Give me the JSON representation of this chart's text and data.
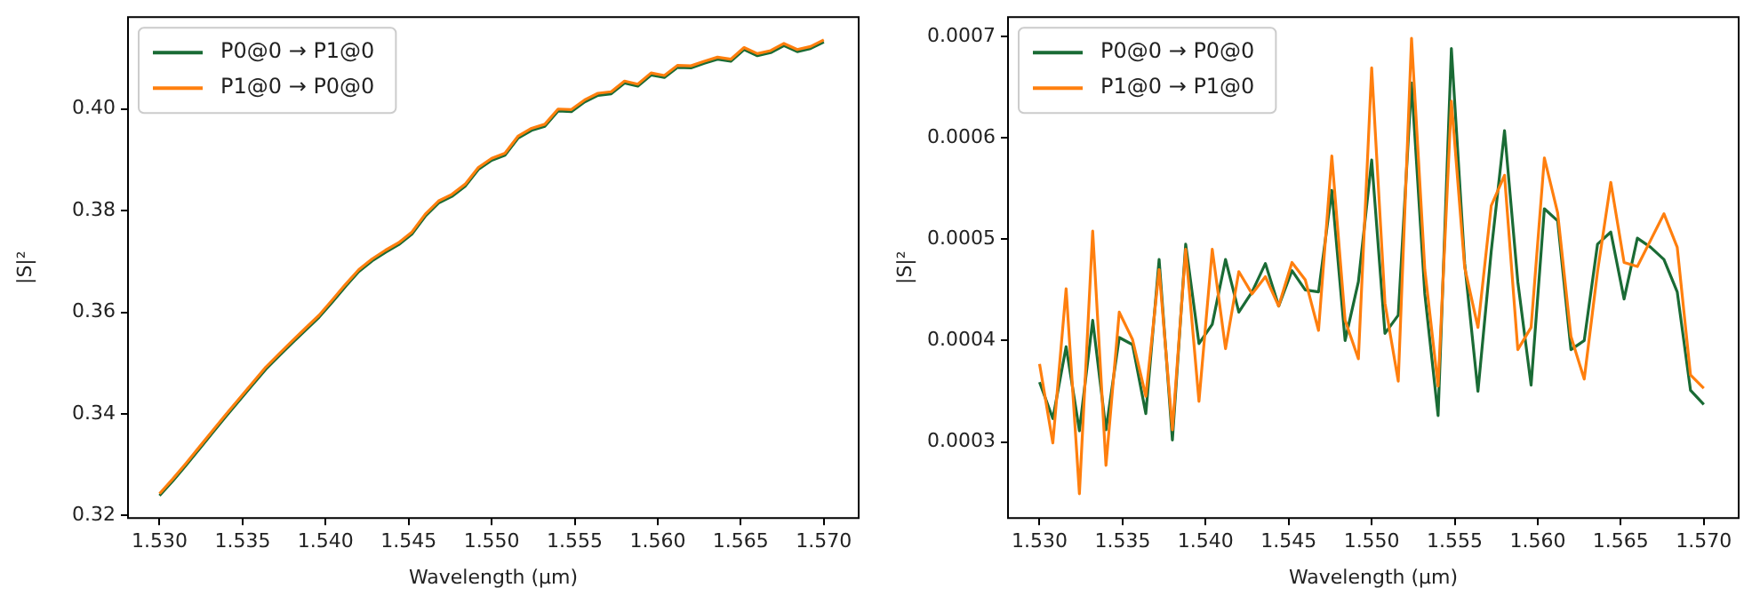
{
  "chart_data": [
    {
      "type": "line",
      "xlabel": "Wavelength (μm)",
      "ylabel": "|S|²",
      "legend": "top left",
      "grid": false,
      "x": [
        1.53,
        1.5308,
        1.5316,
        1.5324,
        1.5332,
        1.534,
        1.5348,
        1.5356,
        1.5364,
        1.5372,
        1.538,
        1.5388,
        1.5396,
        1.5404,
        1.5412,
        1.542,
        1.5428,
        1.5436,
        1.5444,
        1.5452,
        1.546,
        1.5468,
        1.5476,
        1.5484,
        1.5492,
        1.55,
        1.5508,
        1.5516,
        1.5524,
        1.5532,
        1.554,
        1.5548,
        1.5556,
        1.5564,
        1.5572,
        1.558,
        1.5588,
        1.5596,
        1.5604,
        1.5612,
        1.562,
        1.5628,
        1.5636,
        1.5644,
        1.5652,
        1.566,
        1.5668,
        1.5676,
        1.5684,
        1.5692,
        1.57
      ],
      "xlim": [
        1.5281,
        1.5721
      ],
      "ylim": [
        0.3195,
        0.4181
      ],
      "xticks": [
        {
          "value": 1.53,
          "label": "1.530"
        },
        1.535,
        {
          "value": 1.54,
          "label": "1.540"
        },
        1.545,
        {
          "value": 1.55,
          "label": "1.550"
        },
        1.555,
        {
          "value": 1.56,
          "label": "1.560"
        },
        1.565,
        {
          "value": 1.57,
          "label": "1.570"
        }
      ],
      "yticks": [
        0.32,
        0.34,
        0.36,
        0.38,
        {
          "value": 0.4,
          "label": "0.40"
        }
      ],
      "series": [
        {
          "name": "P0@0 → P1@0",
          "color": "#1a6b35",
          "values": [
            0.3239,
            0.3268,
            0.3299,
            0.3331,
            0.3363,
            0.3395,
            0.3426,
            0.3457,
            0.3488,
            0.3514,
            0.354,
            0.3565,
            0.359,
            0.362,
            0.3651,
            0.368,
            0.3701,
            0.3718,
            0.3733,
            0.3754,
            0.3789,
            0.3815,
            0.3828,
            0.3848,
            0.3881,
            0.3899,
            0.3909,
            0.3943,
            0.3958,
            0.3966,
            0.3996,
            0.3995,
            0.4014,
            0.4027,
            0.403,
            0.4051,
            0.4045,
            0.4067,
            0.4062,
            0.4082,
            0.4081,
            0.409,
            0.4098,
            0.4094,
            0.4117,
            0.4105,
            0.4111,
            0.4125,
            0.4113,
            0.4119,
            0.4132
          ]
        },
        {
          "name": "P1@0 → P0@0",
          "color": "#ff7f0e",
          "values": [
            0.3243,
            0.3272,
            0.3303,
            0.3335,
            0.3367,
            0.3399,
            0.343,
            0.3461,
            0.3492,
            0.3518,
            0.3544,
            0.3569,
            0.3594,
            0.3624,
            0.3655,
            0.3684,
            0.3705,
            0.3722,
            0.3737,
            0.3758,
            0.3793,
            0.3819,
            0.3832,
            0.3852,
            0.3885,
            0.3903,
            0.3913,
            0.3947,
            0.3962,
            0.397,
            0.4,
            0.3999,
            0.4018,
            0.4031,
            0.4034,
            0.4055,
            0.4049,
            0.4071,
            0.4066,
            0.4086,
            0.4085,
            0.4094,
            0.4102,
            0.4098,
            0.4121,
            0.4109,
            0.4115,
            0.4129,
            0.4117,
            0.4123,
            0.4136
          ]
        }
      ]
    },
    {
      "type": "line",
      "xlabel": "Wavelength (μm)",
      "ylabel": "|S|²",
      "legend": "top left",
      "grid": false,
      "x": [
        1.53,
        1.5308,
        1.5316,
        1.5324,
        1.5332,
        1.534,
        1.5348,
        1.5356,
        1.5364,
        1.5372,
        1.538,
        1.5388,
        1.5396,
        1.5404,
        1.5412,
        1.542,
        1.5428,
        1.5436,
        1.5444,
        1.5452,
        1.546,
        1.5468,
        1.5476,
        1.5484,
        1.5492,
        1.55,
        1.5508,
        1.5516,
        1.5524,
        1.5532,
        1.554,
        1.5548,
        1.5556,
        1.5564,
        1.5572,
        1.558,
        1.5588,
        1.5596,
        1.5604,
        1.5612,
        1.562,
        1.5628,
        1.5636,
        1.5644,
        1.5652,
        1.566,
        1.5668,
        1.5676,
        1.5684,
        1.5692,
        1.57
      ],
      "xlim": [
        1.5281,
        1.5721
      ],
      "ylim": [
        0.000225,
        0.000719
      ],
      "xticks": [
        {
          "value": 1.53,
          "label": "1.530"
        },
        1.535,
        {
          "value": 1.54,
          "label": "1.540"
        },
        1.545,
        {
          "value": 1.55,
          "label": "1.550"
        },
        1.555,
        {
          "value": 1.56,
          "label": "1.560"
        },
        1.565,
        {
          "value": 1.57,
          "label": "1.570"
        }
      ],
      "yticks": [
        0.0003,
        0.0004,
        0.0005,
        0.0006,
        0.0007
      ],
      "series": [
        {
          "name": "P0@0 → P0@0",
          "color": "#1a6b35",
          "values": [
            0.000359,
            0.000323,
            0.000394,
            0.000311,
            0.00042,
            0.000312,
            0.000403,
            0.000396,
            0.000328,
            0.00048,
            0.000302,
            0.000495,
            0.000397,
            0.000416,
            0.00048,
            0.000428,
            0.000448,
            0.000476,
            0.000434,
            0.000469,
            0.00045,
            0.000448,
            0.000548,
            0.0004,
            0.000458,
            0.000578,
            0.000407,
            0.000425,
            0.000654,
            0.000446,
            0.000326,
            0.000688,
            0.000476,
            0.00035,
            0.000488,
            0.000607,
            0.000458,
            0.000356,
            0.00053,
            0.000518,
            0.000391,
            0.0004,
            0.000495,
            0.000507,
            0.000441,
            0.000501,
            0.000492,
            0.00048,
            0.000448,
            0.000351,
            0.000337
          ]
        },
        {
          "name": "P1@0 → P1@0",
          "color": "#ff7f0e",
          "values": [
            0.000377,
            0.000299,
            0.000451,
            0.000249,
            0.000508,
            0.000277,
            0.000428,
            0.000401,
            0.000345,
            0.00047,
            0.000312,
            0.00049,
            0.00034,
            0.00049,
            0.000392,
            0.000468,
            0.000446,
            0.000463,
            0.000434,
            0.000477,
            0.00046,
            0.00041,
            0.000582,
            0.00042,
            0.000382,
            0.000669,
            0.000437,
            0.00036,
            0.000698,
            0.00047,
            0.000355,
            0.000636,
            0.000472,
            0.000413,
            0.000533,
            0.000563,
            0.000391,
            0.000413,
            0.00058,
            0.000526,
            0.000404,
            0.000362,
            0.000468,
            0.000556,
            0.000477,
            0.000473,
            0.000499,
            0.000525,
            0.000492,
            0.000366,
            0.000353
          ]
        }
      ]
    }
  ]
}
